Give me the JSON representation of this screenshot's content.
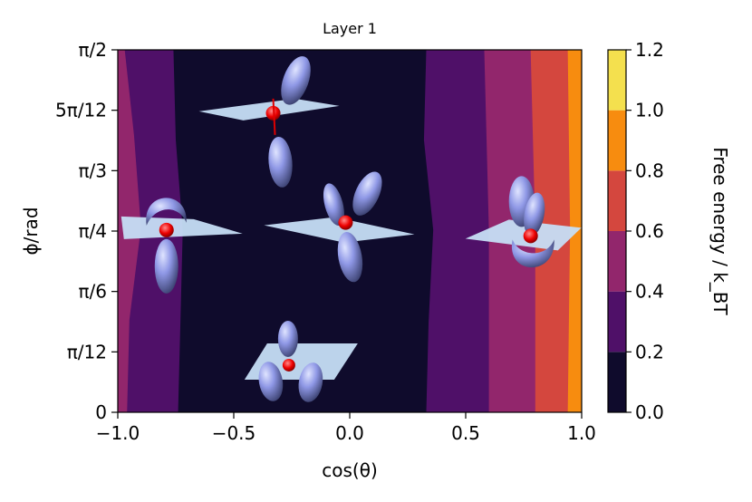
{
  "chart_data": {
    "type": "heatmap",
    "title": "Layer 1",
    "xlabel": "cos(θ)",
    "ylabel": "ϕ/rad",
    "xlim": [
      -1.0,
      1.0
    ],
    "ylim": [
      0,
      1.5708
    ],
    "x_ticks": [
      {
        "value": -1.0,
        "label": "−1.0"
      },
      {
        "value": -0.5,
        "label": "−0.5"
      },
      {
        "value": 0.0,
        "label": "0.0"
      },
      {
        "value": 0.5,
        "label": "0.5"
      },
      {
        "value": 1.0,
        "label": "1.0"
      }
    ],
    "y_ticks": [
      {
        "value": 0,
        "label": "0"
      },
      {
        "value": 0.2618,
        "label": "π/12"
      },
      {
        "value": 0.5236,
        "label": "π/6"
      },
      {
        "value": 0.7854,
        "label": "π/4"
      },
      {
        "value": 1.0472,
        "label": "π/3"
      },
      {
        "value": 1.309,
        "label": "5π/12"
      },
      {
        "value": 1.5708,
        "label": "π/2"
      }
    ],
    "colorbar": {
      "label": "Free energy / k_BT",
      "levels": [
        0.0,
        0.2,
        0.4,
        0.6,
        0.8,
        1.0,
        1.2
      ],
      "level_labels": [
        "0.0",
        "0.2",
        "0.4",
        "0.6",
        "0.8",
        "1.0",
        "1.2"
      ],
      "colors": [
        "#0f0b2c",
        "#4f1068",
        "#92266c",
        "#d4473e",
        "#f78c0f",
        "#f4e04e"
      ]
    },
    "bands": [
      {
        "level": 0.2,
        "left": [
          [
            -0.74,
            0
          ],
          [
            -0.73,
            0.39
          ],
          [
            -0.72,
            0.79
          ],
          [
            -0.75,
            1.18
          ],
          [
            -0.76,
            1.57
          ]
        ],
        "right": [
          [
            0.33,
            0
          ],
          [
            0.34,
            0.39
          ],
          [
            0.36,
            0.79
          ],
          [
            0.32,
            1.18
          ],
          [
            0.33,
            1.57
          ]
        ]
      },
      {
        "level": 0.4,
        "left": [
          [
            -1.0,
            0
          ],
          [
            -1.0,
            1.57
          ]
        ],
        "right": [
          [
            0.6,
            0
          ],
          [
            0.6,
            0.79
          ],
          [
            0.58,
            1.57
          ]
        ]
      },
      {
        "level": 0.6,
        "right": [
          [
            0.8,
            0
          ],
          [
            0.8,
            0.79
          ],
          [
            0.78,
            1.57
          ]
        ]
      },
      {
        "level": 0.8,
        "right": [
          [
            0.94,
            0
          ],
          [
            0.95,
            0.79
          ],
          [
            0.94,
            1.57
          ]
        ]
      }
    ],
    "insets": [
      {
        "name": "configuration-top",
        "x": -0.33,
        "y": 1.32
      },
      {
        "name": "configuration-left",
        "x": -0.79,
        "y": 0.79
      },
      {
        "name": "configuration-center",
        "x": -0.01,
        "y": 0.83
      },
      {
        "name": "configuration-right",
        "x": 0.78,
        "y": 0.78
      },
      {
        "name": "configuration-bottom",
        "x": -0.27,
        "y": 0.22
      }
    ]
  }
}
